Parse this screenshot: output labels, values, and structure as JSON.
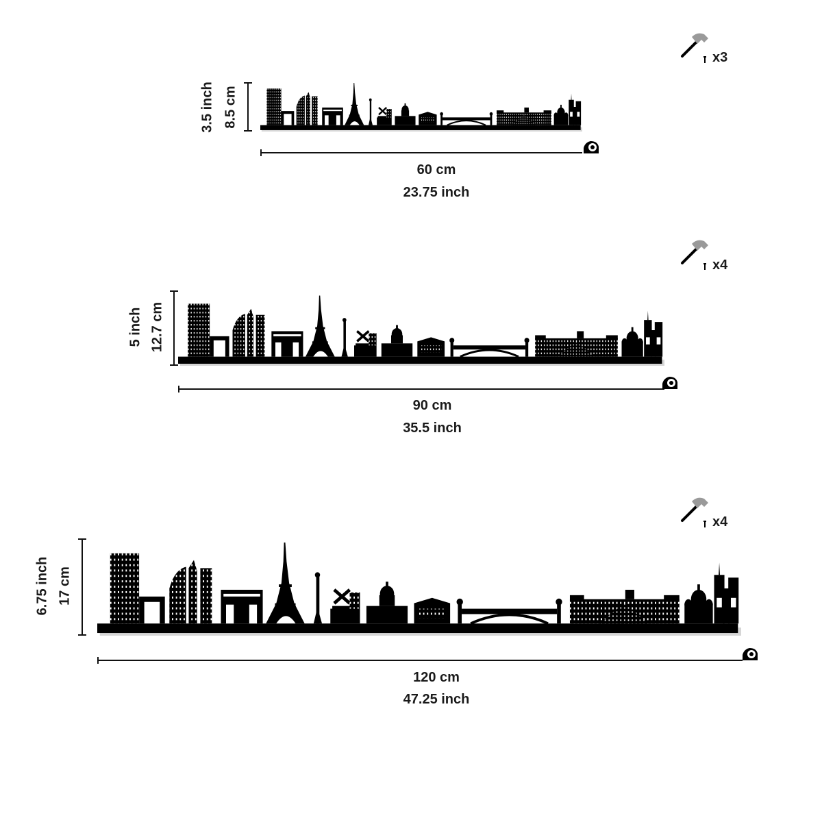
{
  "sizes": [
    {
      "height_inch": "3.5 inch",
      "height_cm": "8.5 cm",
      "width_cm": "60 cm",
      "width_inch": "23.75 inch",
      "nails": "x3"
    },
    {
      "height_inch": "5 inch",
      "height_cm": "12.7 cm",
      "width_cm": "90 cm",
      "width_inch": "35.5 inch",
      "nails": "x4"
    },
    {
      "height_inch": "6.75 inch",
      "height_cm": "17 cm",
      "width_cm": "120 cm",
      "width_inch": "47.25 inch",
      "nails": "x4"
    }
  ],
  "icons": {
    "hammer": "hammer-icon",
    "tape": "tape-measure-icon",
    "nail": "nail-icon"
  },
  "colors": {
    "silhouette": "#000000",
    "hammer_head": "#9a9a9a",
    "text": "#1a1a1a"
  }
}
